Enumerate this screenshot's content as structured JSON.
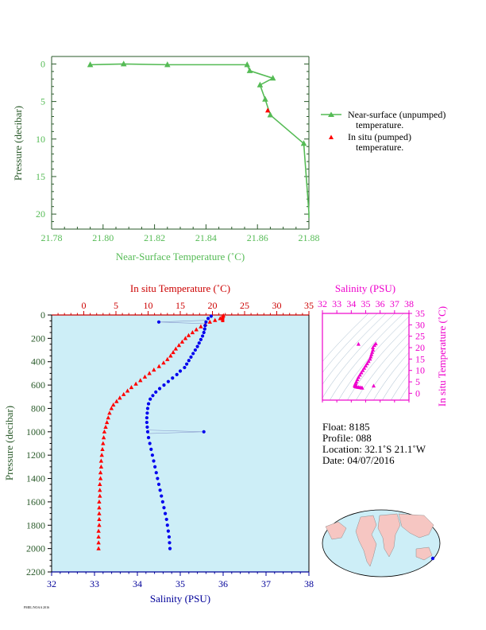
{
  "colors": {
    "green": "#55bb55",
    "red": "#ff0000",
    "darkred": "#cc0000",
    "blue": "#0000ee",
    "darkblue": "#000099",
    "magenta": "#ee00cc",
    "panel_bg": "#cdeef7",
    "legend_text": "#000000"
  },
  "icons": {
    "triangle": "triangle-marker",
    "dot": "circle-marker"
  },
  "chart_data": [
    {
      "type": "line",
      "xlabel": "Near-Surface Temperature (˚C)",
      "ylabel": "Pressure (decibar)",
      "xlim": [
        21.78,
        21.88
      ],
      "ylim": [
        22,
        -1
      ],
      "x_ticks": [
        "21.78",
        "21.80",
        "21.82",
        "21.84",
        "21.86",
        "21.88"
      ],
      "y_ticks": [
        "0",
        "5",
        "10",
        "15",
        "20"
      ],
      "grid": false,
      "legend_position": "right",
      "series": [
        {
          "name": "Near-surface (unpumped) temperature.",
          "line": true,
          "points": [
            {
              "x": 21.795,
              "y": 0.1
            },
            {
              "x": 21.808,
              "y": 0.0
            },
            {
              "x": 21.825,
              "y": 0.1
            },
            {
              "x": 21.856,
              "y": 0.1
            },
            {
              "x": 21.857,
              "y": 0.9
            },
            {
              "x": 21.866,
              "y": 1.9
            },
            {
              "x": 21.861,
              "y": 2.8
            },
            {
              "x": 21.863,
              "y": 4.7
            },
            {
              "x": 21.865,
              "y": 6.8
            },
            {
              "x": 21.878,
              "y": 10.6
            },
            {
              "x": 21.88,
              "y": 19.8
            }
          ]
        },
        {
          "name": "In situ (pumped) temperature.",
          "line": false,
          "points": [
            {
              "x": 21.864,
              "y": 6.2
            }
          ]
        }
      ],
      "legend": [
        {
          "line1": "Near-surface (unpumped)",
          "line2": "temperature."
        },
        {
          "line1": "In situ (pumped)",
          "line2": "temperature."
        }
      ]
    },
    {
      "type": "line",
      "title_top": "In situ Temperature (˚C)",
      "xlabel_bottom": "Salinity (PSU)",
      "ylabel": "Pressure (decibar)",
      "temp_lim": [
        -5,
        35
      ],
      "sal_lim": [
        32,
        38
      ],
      "ylim": [
        2200,
        0
      ],
      "temp_ticks": [
        "0",
        "5",
        "10",
        "15",
        "20",
        "25",
        "30",
        "35"
      ],
      "sal_ticks": [
        "32",
        "33",
        "34",
        "35",
        "36",
        "37",
        "38"
      ],
      "y_ticks": [
        "0",
        "200",
        "400",
        "600",
        "800",
        "1000",
        "1200",
        "1400",
        "1600",
        "1800",
        "2000",
        "2200"
      ],
      "series": [
        {
          "name": "In situ Temperature",
          "axis": "temperature",
          "points": [
            [
              21.7,
              5
            ],
            [
              21.6,
              15
            ],
            [
              21.2,
              30
            ],
            [
              20.4,
              45
            ],
            [
              19.6,
              60
            ],
            [
              18.9,
              80
            ],
            [
              18.2,
              100
            ],
            [
              17.5,
              125
            ],
            [
              16.9,
              150
            ],
            [
              16.3,
              175
            ],
            [
              15.8,
              200
            ],
            [
              15.3,
              230
            ],
            [
              14.8,
              260
            ],
            [
              14.3,
              290
            ],
            [
              13.9,
              320
            ],
            [
              13.5,
              350
            ],
            [
              13.0,
              380
            ],
            [
              12.4,
              410
            ],
            [
              11.7,
              440
            ],
            [
              10.9,
              470
            ],
            [
              10.2,
              500
            ],
            [
              9.5,
              530
            ],
            [
              8.8,
              560
            ],
            [
              8.1,
              590
            ],
            [
              7.4,
              620
            ],
            [
              6.8,
              650
            ],
            [
              6.2,
              680
            ],
            [
              5.6,
              710
            ],
            [
              5.1,
              740
            ],
            [
              4.6,
              770
            ],
            [
              4.3,
              800
            ],
            [
              4.0,
              840
            ],
            [
              3.8,
              880
            ],
            [
              3.6,
              920
            ],
            [
              3.4,
              960
            ],
            [
              3.2,
              1000
            ],
            [
              3.1,
              1050
            ],
            [
              3.0,
              1100
            ],
            [
              2.9,
              1150
            ],
            [
              2.8,
              1200
            ],
            [
              2.7,
              1250
            ],
            [
              2.7,
              1300
            ],
            [
              2.6,
              1350
            ],
            [
              2.6,
              1400
            ],
            [
              2.5,
              1450
            ],
            [
              2.5,
              1500
            ],
            [
              2.5,
              1550
            ],
            [
              2.4,
              1600
            ],
            [
              2.4,
              1650
            ],
            [
              2.4,
              1700
            ],
            [
              2.4,
              1750
            ],
            [
              2.4,
              1800
            ],
            [
              2.3,
              1850
            ],
            [
              2.3,
              1900
            ],
            [
              2.3,
              1950
            ],
            [
              2.3,
              2000
            ]
          ]
        },
        {
          "name": "Salinity",
          "axis": "salinity",
          "points": [
            [
              35.72,
              10
            ],
            [
              35.65,
              30
            ],
            [
              35.6,
              60
            ],
            [
              35.58,
              90
            ],
            [
              35.57,
              120
            ],
            [
              35.55,
              150
            ],
            [
              35.52,
              180
            ],
            [
              35.48,
              210
            ],
            [
              35.44,
              240
            ],
            [
              35.4,
              270
            ],
            [
              35.35,
              300
            ],
            [
              35.3,
              330
            ],
            [
              35.25,
              360
            ],
            [
              35.2,
              390
            ],
            [
              35.15,
              420
            ],
            [
              35.1,
              450
            ],
            [
              35.0,
              480
            ],
            [
              34.92,
              510
            ],
            [
              34.82,
              540
            ],
            [
              34.72,
              570
            ],
            [
              34.62,
              600
            ],
            [
              34.52,
              630
            ],
            [
              34.43,
              660
            ],
            [
              34.36,
              690
            ],
            [
              34.3,
              720
            ],
            [
              34.26,
              760
            ],
            [
              34.24,
              800
            ],
            [
              34.23,
              840
            ],
            [
              34.22,
              880
            ],
            [
              34.22,
              920
            ],
            [
              34.23,
              960
            ],
            [
              34.24,
              1000
            ],
            [
              34.26,
              1050
            ],
            [
              34.29,
              1100
            ],
            [
              34.32,
              1150
            ],
            [
              34.35,
              1200
            ],
            [
              34.38,
              1250
            ],
            [
              34.41,
              1300
            ],
            [
              34.44,
              1350
            ],
            [
              34.47,
              1400
            ],
            [
              34.5,
              1450
            ],
            [
              34.53,
              1500
            ],
            [
              34.56,
              1550
            ],
            [
              34.59,
              1600
            ],
            [
              34.62,
              1650
            ],
            [
              34.65,
              1700
            ],
            [
              34.68,
              1750
            ],
            [
              34.7,
              1800
            ],
            [
              34.72,
              1850
            ],
            [
              34.74,
              1900
            ],
            [
              34.75,
              1950
            ],
            [
              34.76,
              2000
            ]
          ],
          "outliers": [
            [
              34.5,
              60
            ],
            [
              35.55,
              1000
            ]
          ]
        }
      ]
    },
    {
      "type": "scatter",
      "title": "Salinity (PSU)",
      "ylabel": "In situ Temperature (˚C)",
      "xlim": [
        32,
        38
      ],
      "ylim": [
        -3,
        35
      ],
      "x_ticks": [
        "32",
        "33",
        "34",
        "35",
        "36",
        "37",
        "38"
      ],
      "y_ticks": [
        "0",
        "5",
        "10",
        "15",
        "20",
        "25",
        "30",
        "35"
      ],
      "points": [
        [
          35.7,
          21.7
        ],
        [
          35.6,
          21.0
        ],
        [
          35.5,
          20.0
        ],
        [
          35.5,
          19.0
        ],
        [
          35.45,
          18.0
        ],
        [
          35.4,
          17.0
        ],
        [
          35.35,
          16.0
        ],
        [
          35.3,
          15.0
        ],
        [
          35.2,
          14.0
        ],
        [
          35.1,
          13.0
        ],
        [
          35.0,
          12.0
        ],
        [
          34.9,
          11.0
        ],
        [
          34.8,
          10.0
        ],
        [
          34.7,
          9.0
        ],
        [
          34.6,
          8.0
        ],
        [
          34.5,
          7.0
        ],
        [
          34.42,
          6.0
        ],
        [
          34.35,
          5.0
        ],
        [
          34.3,
          4.3
        ],
        [
          34.26,
          3.8
        ],
        [
          34.24,
          3.4
        ],
        [
          34.26,
          3.1
        ],
        [
          34.3,
          2.9
        ],
        [
          34.4,
          2.7
        ],
        [
          34.5,
          2.6
        ],
        [
          34.6,
          2.5
        ],
        [
          34.7,
          2.4
        ],
        [
          34.76,
          2.3
        ],
        [
          34.5,
          21.5
        ],
        [
          35.55,
          3.2
        ]
      ]
    }
  ],
  "info": {
    "float": "Float:  8185",
    "profile": "Profile:  088",
    "location": "Location:  32.1˚S  21.1˚W",
    "date": "Date:  04/07/2016"
  }
}
